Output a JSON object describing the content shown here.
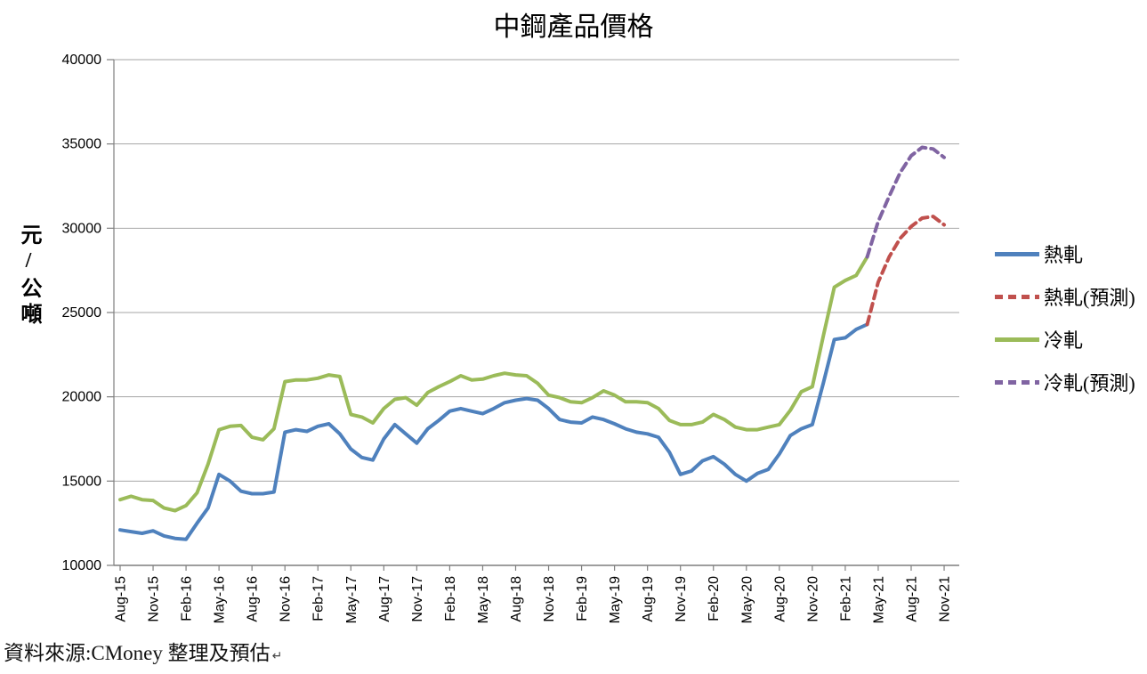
{
  "footer": {
    "source_text": "資料來源:CMoney 整理及預估",
    "return_mark": "↵"
  },
  "colors": {
    "grid": "#A6A6A6",
    "axis": "#7F7F7F",
    "text": "#000000"
  },
  "chart_data": {
    "type": "line",
    "title": "中鋼產品價格",
    "ylabel": "元/公噸",
    "xlabel": "",
    "ylim": [
      10000,
      40000
    ],
    "ytick_step": 5000,
    "grid": true,
    "legend_position": "right",
    "label_every": 3,
    "categories": [
      "Aug-15",
      "Sep-15",
      "Oct-15",
      "Nov-15",
      "Dec-15",
      "Jan-16",
      "Feb-16",
      "Mar-16",
      "Apr-16",
      "May-16",
      "Jun-16",
      "Jul-16",
      "Aug-16",
      "Sep-16",
      "Oct-16",
      "Nov-16",
      "Dec-16",
      "Jan-17",
      "Feb-17",
      "Mar-17",
      "Apr-17",
      "May-17",
      "Jun-17",
      "Jul-17",
      "Aug-17",
      "Sep-17",
      "Oct-17",
      "Nov-17",
      "Dec-17",
      "Jan-18",
      "Feb-18",
      "Mar-18",
      "Apr-18",
      "May-18",
      "Jun-18",
      "Jul-18",
      "Aug-18",
      "Sep-18",
      "Oct-18",
      "Nov-18",
      "Dec-18",
      "Jan-19",
      "Feb-19",
      "Mar-19",
      "Apr-19",
      "May-19",
      "Jun-19",
      "Jul-19",
      "Aug-19",
      "Sep-19",
      "Oct-19",
      "Nov-19",
      "Dec-19",
      "Jan-20",
      "Feb-20",
      "Mar-20",
      "Apr-20",
      "May-20",
      "Jun-20",
      "Jul-20",
      "Aug-20",
      "Sep-20",
      "Oct-20",
      "Nov-20",
      "Dec-20",
      "Jan-21",
      "Feb-21",
      "Mar-21",
      "Apr-21",
      "May-21",
      "Jun-21",
      "Jul-21",
      "Aug-21",
      "Sep-21",
      "Oct-21",
      "Nov-21"
    ],
    "series": [
      {
        "name": "熱軋",
        "color": "#4F81BD",
        "style": "solid",
        "values": [
          12100,
          12000,
          11900,
          12050,
          11750,
          11600,
          11550,
          12500,
          13400,
          15400,
          15000,
          14400,
          14250,
          14250,
          14350,
          17900,
          18050,
          17950,
          18250,
          18400,
          17800,
          16900,
          16400,
          16250,
          17500,
          18350,
          17800,
          17250,
          18100,
          18600,
          19150,
          19300,
          19150,
          19000,
          19300,
          19650,
          19800,
          19900,
          19800,
          19300,
          18650,
          18500,
          18450,
          18800,
          18650,
          18400,
          18100,
          17900,
          17800,
          17600,
          16700,
          15400,
          15600,
          16200,
          16450,
          16000,
          15400,
          15000,
          15450,
          15700,
          16600,
          17700,
          18100,
          18350,
          20800,
          23400,
          23500,
          24000,
          24300,
          null,
          null,
          null,
          null,
          null,
          null,
          null
        ]
      },
      {
        "name": "熱軋(預測)",
        "color": "#C0504D",
        "style": "dashed",
        "values": [
          null,
          null,
          null,
          null,
          null,
          null,
          null,
          null,
          null,
          null,
          null,
          null,
          null,
          null,
          null,
          null,
          null,
          null,
          null,
          null,
          null,
          null,
          null,
          null,
          null,
          null,
          null,
          null,
          null,
          null,
          null,
          null,
          null,
          null,
          null,
          null,
          null,
          null,
          null,
          null,
          null,
          null,
          null,
          null,
          null,
          null,
          null,
          null,
          null,
          null,
          null,
          null,
          null,
          null,
          null,
          null,
          null,
          null,
          null,
          null,
          null,
          null,
          null,
          null,
          null,
          null,
          null,
          null,
          24300,
          26800,
          28300,
          29400,
          30100,
          30600,
          30700,
          30200
        ]
      },
      {
        "name": "冷軋",
        "color": "#9BBB59",
        "style": "solid",
        "values": [
          13900,
          14100,
          13900,
          13850,
          13400,
          13250,
          13550,
          14300,
          16000,
          18050,
          18250,
          18300,
          17600,
          17450,
          18100,
          20900,
          21000,
          21000,
          21100,
          21300,
          21200,
          18950,
          18800,
          18450,
          19300,
          19850,
          19950,
          19500,
          20250,
          20600,
          20900,
          21250,
          21000,
          21050,
          21250,
          21400,
          21300,
          21250,
          20800,
          20100,
          19950,
          19700,
          19650,
          19950,
          20350,
          20100,
          19700,
          19700,
          19650,
          19300,
          18600,
          18350,
          18350,
          18500,
          18950,
          18650,
          18200,
          18050,
          18050,
          18200,
          18350,
          19200,
          20300,
          20600,
          23600,
          26500,
          26900,
          27200,
          28300,
          null,
          null,
          null,
          null,
          null,
          null,
          null
        ]
      },
      {
        "name": "冷軋(預測)",
        "color": "#8064A2",
        "style": "dashed",
        "values": [
          null,
          null,
          null,
          null,
          null,
          null,
          null,
          null,
          null,
          null,
          null,
          null,
          null,
          null,
          null,
          null,
          null,
          null,
          null,
          null,
          null,
          null,
          null,
          null,
          null,
          null,
          null,
          null,
          null,
          null,
          null,
          null,
          null,
          null,
          null,
          null,
          null,
          null,
          null,
          null,
          null,
          null,
          null,
          null,
          null,
          null,
          null,
          null,
          null,
          null,
          null,
          null,
          null,
          null,
          null,
          null,
          null,
          null,
          null,
          null,
          null,
          null,
          null,
          null,
          null,
          null,
          null,
          null,
          28300,
          30400,
          31900,
          33300,
          34300,
          34800,
          34700,
          34200
        ]
      }
    ]
  }
}
